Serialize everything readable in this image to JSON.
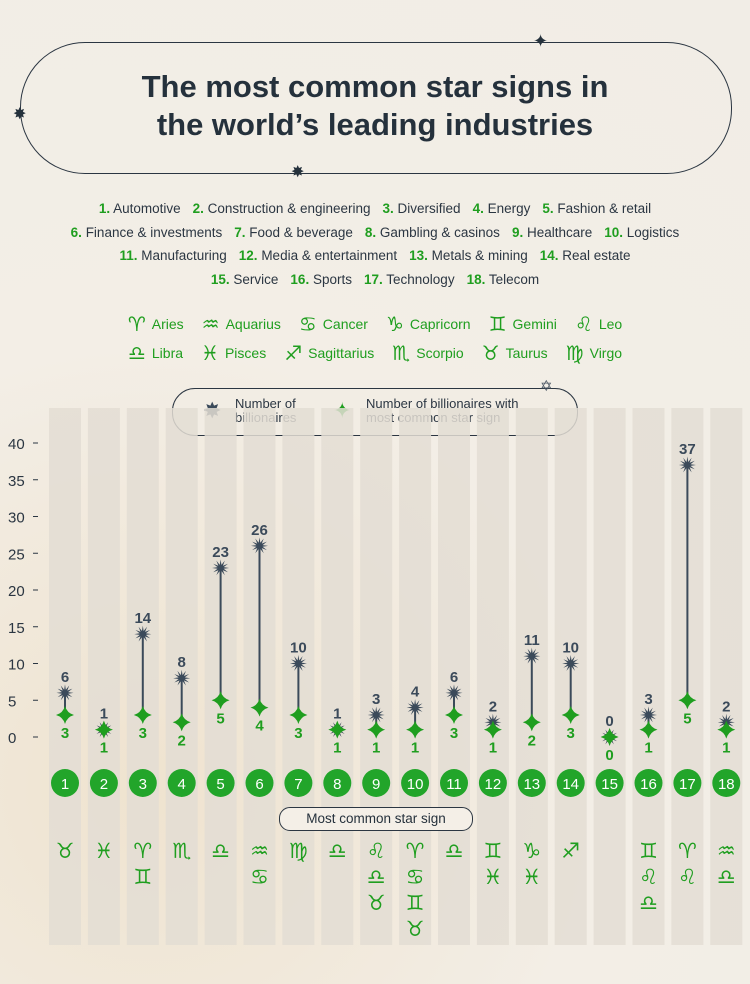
{
  "title_line1": "The most common star signs in",
  "title_line2": "the world’s leading industries",
  "industries": [
    {
      "n": "1.",
      "name": "Automotive"
    },
    {
      "n": "2.",
      "name": "Construction & engineering"
    },
    {
      "n": "3.",
      "name": "Diversified"
    },
    {
      "n": "4.",
      "name": "Energy"
    },
    {
      "n": "5.",
      "name": "Fashion & retail"
    },
    {
      "n": "6.",
      "name": "Finance & investments"
    },
    {
      "n": "7.",
      "name": "Food & beverage"
    },
    {
      "n": "8.",
      "name": "Gambling & casinos"
    },
    {
      "n": "9.",
      "name": "Healthcare"
    },
    {
      "n": "10.",
      "name": "Logistics"
    },
    {
      "n": "11.",
      "name": "Manufacturing"
    },
    {
      "n": "12.",
      "name": "Media & entertainment"
    },
    {
      "n": "13.",
      "name": "Metals & mining"
    },
    {
      "n": "14.",
      "name": "Real estate"
    },
    {
      "n": "15.",
      "name": "Service"
    },
    {
      "n": "16.",
      "name": "Sports"
    },
    {
      "n": "17.",
      "name": "Technology"
    },
    {
      "n": "18.",
      "name": "Telecom"
    }
  ],
  "signs": [
    {
      "glyph": "♈",
      "name": "Aries"
    },
    {
      "glyph": "♒",
      "name": "Aquarius"
    },
    {
      "glyph": "♋",
      "name": "Cancer"
    },
    {
      "glyph": "♑",
      "name": "Capricorn"
    },
    {
      "glyph": "♊",
      "name": "Gemini"
    },
    {
      "glyph": "♌",
      "name": "Leo"
    },
    {
      "glyph": "♎",
      "name": "Libra"
    },
    {
      "glyph": "♓",
      "name": "Pisces"
    },
    {
      "glyph": "♐",
      "name": "Sagittarius"
    },
    {
      "glyph": "♏",
      "name": "Scorpio"
    },
    {
      "glyph": "♉",
      "name": "Taurus"
    },
    {
      "glyph": "♍",
      "name": "Virgo"
    }
  ],
  "legend": {
    "billionaires_l1": "Number of",
    "billionaires_l2": "billionaires",
    "common_l1": "Number of billionaires with",
    "common_l2": "most common star sign"
  },
  "most_common_label": "Most common star sign",
  "colors": {
    "billionaires": "#3b4a5a",
    "common": "#1f9e1f",
    "badge": "#22a52a",
    "column": "#e3ddd3"
  },
  "chart_data": {
    "type": "scatter",
    "categories": [
      "1",
      "2",
      "3",
      "4",
      "5",
      "6",
      "7",
      "8",
      "9",
      "10",
      "11",
      "12",
      "13",
      "14",
      "15",
      "16",
      "17",
      "18"
    ],
    "series": [
      {
        "name": "Number of billionaires",
        "values": [
          6,
          1,
          14,
          8,
          23,
          26,
          10,
          1,
          3,
          4,
          6,
          2,
          11,
          10,
          0,
          3,
          37,
          2
        ]
      },
      {
        "name": "Number of billionaires with most common star sign",
        "values": [
          3,
          1,
          3,
          2,
          5,
          4,
          3,
          1,
          1,
          1,
          3,
          1,
          2,
          3,
          0,
          1,
          5,
          1
        ]
      }
    ],
    "most_common_signs": [
      [
        "♉"
      ],
      [
        "♓"
      ],
      [
        "♈",
        "♊"
      ],
      [
        "♏"
      ],
      [
        "♎"
      ],
      [
        "♒",
        "♋"
      ],
      [
        "♍"
      ],
      [
        "♎"
      ],
      [
        "♌",
        "♎",
        "♉"
      ],
      [
        "♈",
        "♋",
        "♊",
        "♉"
      ],
      [
        "♎"
      ],
      [
        "♊",
        "♓"
      ],
      [
        "♑",
        "♓"
      ],
      [
        "♐"
      ],
      [],
      [
        "♊",
        "♌",
        "♎"
      ],
      [
        "♈",
        "♌"
      ],
      [
        "♒",
        "♎"
      ]
    ],
    "yticks": [
      0,
      5,
      10,
      15,
      20,
      25,
      30,
      35,
      40
    ],
    "ylim": [
      0,
      40
    ],
    "grid": false,
    "legend_position": "top-center"
  }
}
